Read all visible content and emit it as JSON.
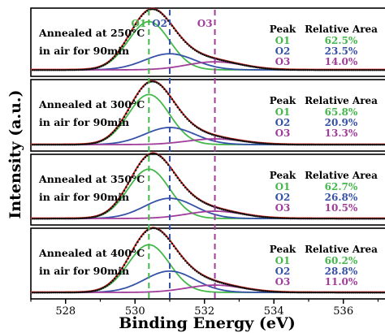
{
  "chart_data": {
    "type": "line",
    "xlabel": "Binding Energy (eV)",
    "ylabel": "Intensity (a.u.)",
    "xlim": [
      527,
      537.2
    ],
    "x_ticks": [
      528,
      530,
      532,
      534,
      536
    ],
    "reference_lines": [
      {
        "label": "O1",
        "x": 530.4,
        "color": "#44b84a"
      },
      {
        "label": "O2",
        "x": 531.0,
        "color": "#3652a8"
      },
      {
        "label": "O3",
        "x": 532.3,
        "color": "#a13d9a"
      }
    ],
    "table_headers": {
      "peak": "Peak",
      "area": "Relative Area"
    },
    "panels": [
      {
        "annotation_line1": "Annealed at 250°C",
        "annotation_line2": "in air for 90min",
        "ymax": 100,
        "peaks": [
          {
            "name": "O1",
            "center": 530.4,
            "height": 90,
            "fwhm": 1.4,
            "area": "62.5%"
          },
          {
            "name": "O2",
            "center": 531.0,
            "height": 30,
            "fwhm": 1.7,
            "area": "23.5%"
          },
          {
            "name": "O3",
            "center": 532.3,
            "height": 15,
            "fwhm": 1.9,
            "area": "14.0%"
          }
        ]
      },
      {
        "annotation_line1": "Annealed at 300°C",
        "annotation_line2": "in air for 90min",
        "ymax": 100,
        "peaks": [
          {
            "name": "O1",
            "center": 530.4,
            "height": 88,
            "fwhm": 1.4,
            "area": "65.8%"
          },
          {
            "name": "O2",
            "center": 531.0,
            "height": 30,
            "fwhm": 1.7,
            "area": "20.9%"
          },
          {
            "name": "O3",
            "center": 532.3,
            "height": 10,
            "fwhm": 1.9,
            "area": "13.3%"
          }
        ]
      },
      {
        "annotation_line1": "Annealed at 350°C",
        "annotation_line2": "in air for 90min",
        "ymax": 100,
        "peaks": [
          {
            "name": "O1",
            "center": 530.4,
            "height": 88,
            "fwhm": 1.4,
            "area": "62.7%"
          },
          {
            "name": "O2",
            "center": 531.0,
            "height": 36,
            "fwhm": 1.7,
            "area": "26.8%"
          },
          {
            "name": "O3",
            "center": 532.3,
            "height": 13,
            "fwhm": 1.9,
            "area": "10.5%"
          }
        ]
      },
      {
        "annotation_line1": "Annealed at 400°C",
        "annotation_line2": "in air for 90min",
        "ymax": 100,
        "peaks": [
          {
            "name": "O1",
            "center": 530.4,
            "height": 85,
            "fwhm": 1.4,
            "area": "60.2%"
          },
          {
            "name": "O2",
            "center": 531.0,
            "height": 38,
            "fwhm": 1.7,
            "area": "28.8%"
          },
          {
            "name": "O3",
            "center": 532.3,
            "height": 13,
            "fwhm": 1.9,
            "area": "11.0%"
          }
        ]
      }
    ],
    "colors": {
      "O1": "#44b84a",
      "O2": "#3652a8",
      "O3": "#a13d9a",
      "fit": "#e8281e",
      "data_points": "#111111"
    }
  }
}
